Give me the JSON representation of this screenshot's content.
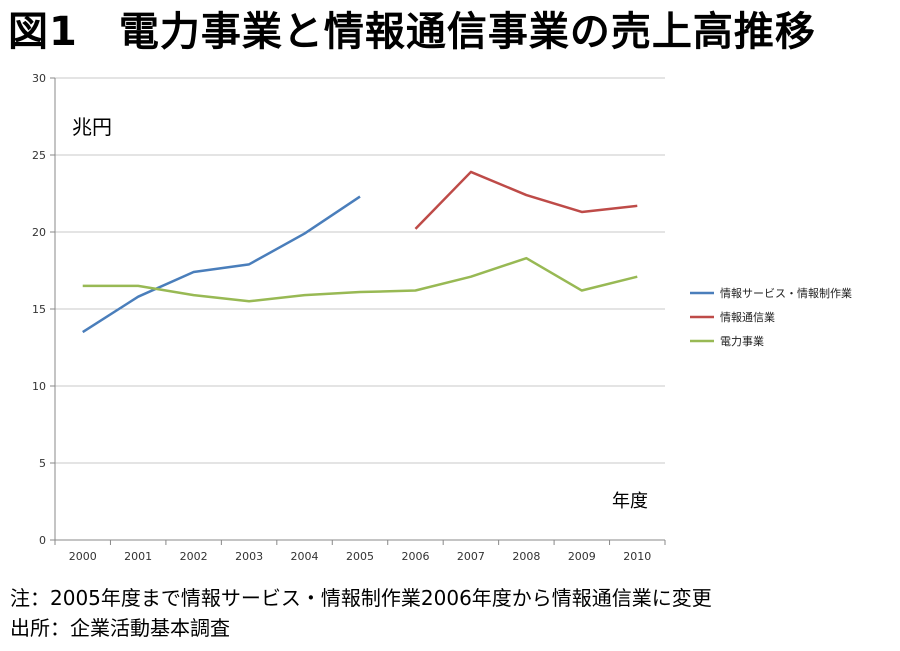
{
  "title": "図1　電力事業と情報通信事業の売上高推移",
  "notes": {
    "note": "注：2005年度まで情報サービス・情報制作業2006年度から情報通信業に変更",
    "source": "出所：企業活動基本調査"
  },
  "chart_data": {
    "type": "line",
    "title": "",
    "ylabel": "兆円",
    "xlabel": "年度",
    "ylim": [
      0,
      30
    ],
    "yticks": [
      0,
      5,
      10,
      15,
      20,
      25,
      30
    ],
    "grid": true,
    "legend_position": "right",
    "categories": [
      "2000",
      "2001",
      "2002",
      "2003",
      "2004",
      "2005",
      "2006",
      "2007",
      "2008",
      "2009",
      "2010"
    ],
    "series": [
      {
        "name": "情報サービス・情報制作業",
        "color": "#4a7ebb",
        "values": [
          13.5,
          15.8,
          17.4,
          17.9,
          19.9,
          22.3,
          null,
          null,
          null,
          null,
          null
        ]
      },
      {
        "name": "情報通信業",
        "color": "#be4b48",
        "values": [
          null,
          null,
          null,
          null,
          null,
          null,
          20.2,
          23.9,
          22.4,
          21.3,
          21.7
        ]
      },
      {
        "name": "電力事業",
        "color": "#98b954",
        "values": [
          16.5,
          16.5,
          15.9,
          15.5,
          15.9,
          16.1,
          16.2,
          17.1,
          18.3,
          16.2,
          17.1
        ]
      }
    ]
  }
}
